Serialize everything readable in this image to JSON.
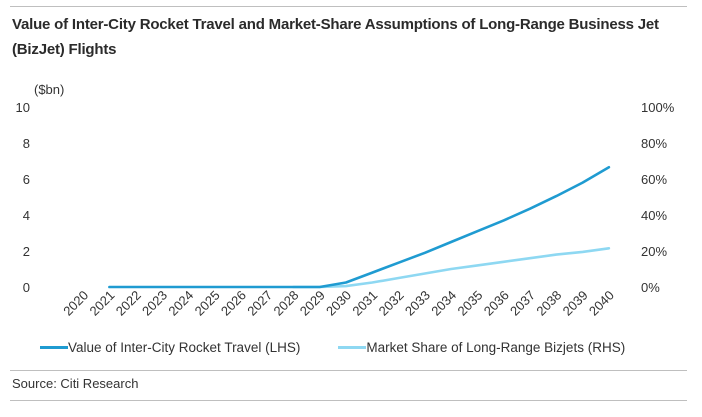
{
  "title": "Value of Inter-City Rocket Travel and Market-Share Assumptions of Long-Range Business Jet (BizJet) Flights",
  "source": "Source: Citi Research",
  "chart_data": {
    "type": "line",
    "left_unit": "($bn)",
    "x": [
      "2020",
      "2021",
      "2022",
      "2023",
      "2024",
      "2025",
      "2026",
      "2027",
      "2028",
      "2029",
      "2030",
      "2031",
      "2032",
      "2033",
      "2034",
      "2035",
      "2036",
      "2037",
      "2038",
      "2039",
      "2040"
    ],
    "left_ticks": [
      "0",
      "2",
      "4",
      "6",
      "8",
      "10"
    ],
    "right_ticks": [
      "0%",
      "20%",
      "40%",
      "60%",
      "80%",
      "100%"
    ],
    "left_ylim": [
      0,
      10
    ],
    "right_ylim": [
      0,
      100
    ],
    "grid": false,
    "legend_position": "bottom",
    "series": [
      {
        "name": "Value of Inter-City Rocket Travel (LHS)",
        "axis": "left",
        "color": "#1f9bd1",
        "x": [
          "2021",
          "2022",
          "2023",
          "2024",
          "2025",
          "2026",
          "2027",
          "2028",
          "2029",
          "2030",
          "2031",
          "2032",
          "2033",
          "2034",
          "2035",
          "2036",
          "2037",
          "2038",
          "2039",
          "2040"
        ],
        "values": [
          0,
          0,
          0,
          0,
          0,
          0,
          0,
          0,
          0,
          0.25,
          0.8,
          1.35,
          1.9,
          2.5,
          3.1,
          3.7,
          4.35,
          5.05,
          5.8,
          6.65
        ]
      },
      {
        "name": "Market Share of Long-Range Bizjets (RHS)",
        "axis": "right",
        "color": "#8ed8f2",
        "x": [
          "2028",
          "2029",
          "2030",
          "2031",
          "2032",
          "2033",
          "2034",
          "2035",
          "2036",
          "2037",
          "2038",
          "2039",
          "2040"
        ],
        "values": [
          0,
          0,
          0.5,
          2.5,
          5,
          7.5,
          10,
          12,
          14,
          16,
          18,
          19.5,
          21.5
        ]
      }
    ]
  }
}
